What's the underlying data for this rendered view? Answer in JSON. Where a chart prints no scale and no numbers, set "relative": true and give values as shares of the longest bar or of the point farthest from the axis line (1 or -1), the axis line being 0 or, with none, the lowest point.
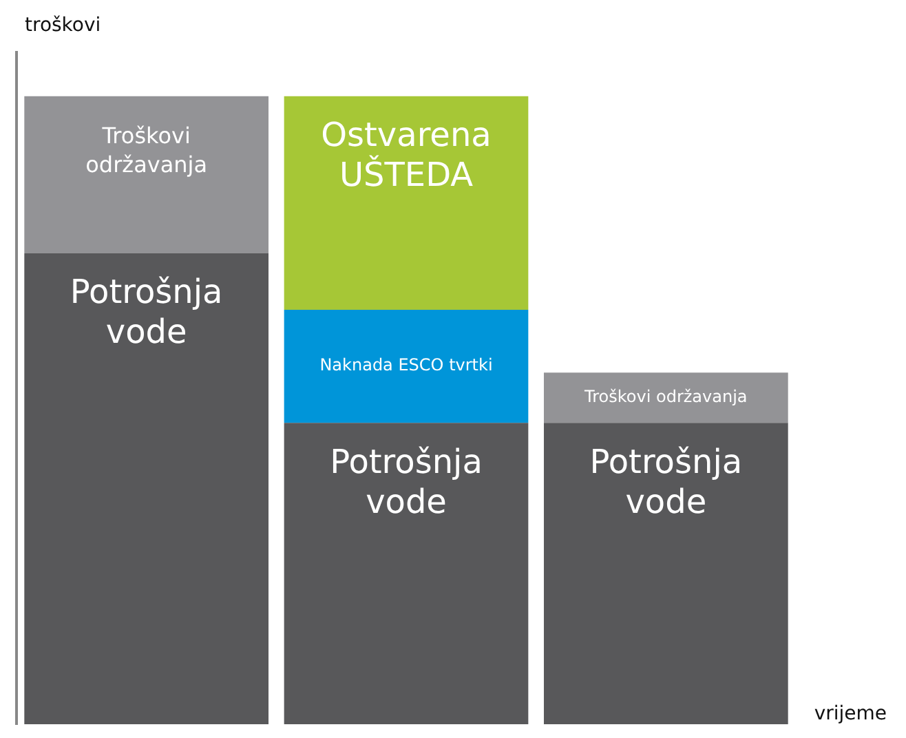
{
  "chart_data": {
    "type": "bar",
    "stacked": true,
    "relative": true,
    "ylabel": "troškovi",
    "xlabel": "vrijeme",
    "categories": [
      null,
      null,
      null
    ],
    "legend": false,
    "grid": false,
    "series": [
      {
        "name": "Potrošnja vode",
        "color": "#58585a",
        "values": [
          0.75,
          0.48,
          0.48
        ]
      },
      {
        "name": "Troškovi održavanja",
        "color": "#939396",
        "values": [
          0.25,
          null,
          0.08
        ]
      },
      {
        "name": "Naknada ESCO tvrtki",
        "color": "#0095d9",
        "values": [
          null,
          0.18,
          null
        ]
      },
      {
        "name": "Ostvarena UŠTEDA",
        "color": "#a6c736",
        "values": [
          null,
          0.34,
          null
        ]
      }
    ]
  }
}
